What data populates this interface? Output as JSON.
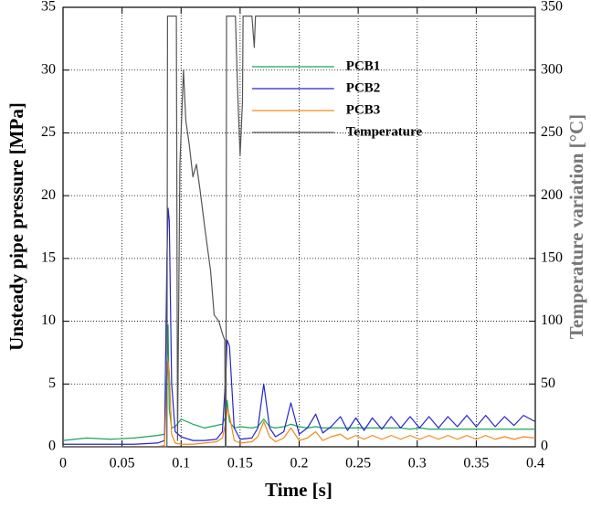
{
  "chart_data": {
    "type": "line",
    "x_label": "Time [s]",
    "y_label": "Unsteady pipe pressure [MPa]",
    "y2_label": "Temperature variation [°C]",
    "y2_label_color": "#777777",
    "xlim": [
      0,
      0.4
    ],
    "xticks": [
      0,
      0.05,
      0.1,
      0.15,
      0.2,
      0.25,
      0.3,
      0.35,
      0.4
    ],
    "ylim": [
      0,
      35
    ],
    "yticks": [
      0,
      5,
      10,
      15,
      20,
      25,
      30,
      35
    ],
    "y2lim": [
      0,
      350
    ],
    "y2ticks": [
      0,
      50,
      100,
      150,
      200,
      250,
      300,
      350
    ],
    "grid": true,
    "legend": "upper center",
    "series": [
      {
        "name": "PCB1",
        "color": "#1aa55a",
        "x": [
          0,
          0.02,
          0.04,
          0.06,
          0.08,
          0.086,
          0.088,
          0.089,
          0.09,
          0.092,
          0.095,
          0.1,
          0.11,
          0.12,
          0.13,
          0.135,
          0.138,
          0.139,
          0.141,
          0.145,
          0.15,
          0.16,
          0.165,
          0.17,
          0.175,
          0.18,
          0.187,
          0.193,
          0.2,
          0.207,
          0.214,
          0.22,
          0.227,
          0.235,
          0.241,
          0.248,
          0.255,
          0.262,
          0.27,
          0.278,
          0.286,
          0.294,
          0.302,
          0.31,
          0.318,
          0.326,
          0.334,
          0.342,
          0.35,
          0.358,
          0.366,
          0.374,
          0.382,
          0.39,
          0.4
        ],
        "values": [
          0.5,
          0.7,
          0.6,
          0.7,
          0.9,
          1.0,
          6,
          9.7,
          3,
          1.5,
          1.6,
          2.2,
          1.8,
          1.5,
          1.7,
          1.8,
          2.5,
          3.7,
          2,
          1.5,
          1.6,
          1.5,
          1.6,
          2.2,
          1.6,
          1.5,
          1.6,
          1.8,
          1.6,
          1.5,
          1.6,
          1.5,
          1.5,
          1.5,
          1.5,
          1.5,
          1.5,
          1.5,
          1.5,
          1.5,
          1.5,
          1.4,
          1.5,
          1.4,
          1.4,
          1.4,
          1.4,
          1.4,
          1.4,
          1.4,
          1.4,
          1.4,
          1.4,
          1.4,
          1.4
        ]
      },
      {
        "name": "PCB2",
        "color": "#2626cc",
        "x": [
          0,
          0.02,
          0.04,
          0.06,
          0.08,
          0.086,
          0.088,
          0.089,
          0.09,
          0.092,
          0.095,
          0.1,
          0.11,
          0.12,
          0.13,
          0.135,
          0.138,
          0.139,
          0.141,
          0.145,
          0.15,
          0.16,
          0.165,
          0.17,
          0.175,
          0.18,
          0.187,
          0.193,
          0.2,
          0.207,
          0.214,
          0.22,
          0.227,
          0.235,
          0.241,
          0.248,
          0.255,
          0.262,
          0.27,
          0.278,
          0.286,
          0.294,
          0.302,
          0.31,
          0.318,
          0.326,
          0.334,
          0.342,
          0.35,
          0.358,
          0.366,
          0.374,
          0.382,
          0.39,
          0.4
        ],
        "values": [
          0.2,
          0.2,
          0.2,
          0.2,
          0.3,
          0.5,
          15,
          19,
          18,
          5,
          1.2,
          0.8,
          0.5,
          0.5,
          0.6,
          1.2,
          6,
          8.5,
          8,
          1.5,
          0.6,
          0.7,
          1.5,
          5,
          1.5,
          0.8,
          1.2,
          3.5,
          1.0,
          1.5,
          2.6,
          1.1,
          1.6,
          2.4,
          1.3,
          2.3,
          1.3,
          2.3,
          1.4,
          2.4,
          1.5,
          2.4,
          1.5,
          2.4,
          1.5,
          2.4,
          1.6,
          2.5,
          1.6,
          2.5,
          1.6,
          2.4,
          1.7,
          2.5,
          2.0
        ]
      },
      {
        "name": "PCB3",
        "color": "#f08a1c",
        "x": [
          0,
          0.02,
          0.04,
          0.06,
          0.08,
          0.086,
          0.088,
          0.089,
          0.09,
          0.092,
          0.095,
          0.1,
          0.11,
          0.12,
          0.13,
          0.135,
          0.138,
          0.139,
          0.141,
          0.145,
          0.15,
          0.16,
          0.165,
          0.17,
          0.175,
          0.18,
          0.187,
          0.193,
          0.2,
          0.207,
          0.214,
          0.22,
          0.227,
          0.235,
          0.241,
          0.248,
          0.255,
          0.262,
          0.27,
          0.278,
          0.286,
          0.294,
          0.302,
          0.31,
          0.318,
          0.326,
          0.334,
          0.342,
          0.35,
          0.358,
          0.366,
          0.374,
          0.382,
          0.39,
          0.4
        ],
        "values": [
          0,
          0,
          0,
          0,
          0,
          0.1,
          5,
          6.8,
          6,
          1,
          0.3,
          0.2,
          0.2,
          0.3,
          0.4,
          0.7,
          2,
          3,
          2.5,
          0.5,
          0.3,
          0.4,
          0.8,
          2,
          0.8,
          0.4,
          0.7,
          1.5,
          0.5,
          0.7,
          1.2,
          0.5,
          0.8,
          1.0,
          0.6,
          0.9,
          0.6,
          0.9,
          0.6,
          0.9,
          0.6,
          0.9,
          0.6,
          0.9,
          0.6,
          0.9,
          0.6,
          0.9,
          0.6,
          0.9,
          0.6,
          0.8,
          0.6,
          0.8,
          0.7
        ]
      },
      {
        "name": "Temperature",
        "color": "#555555",
        "axis": "y2",
        "x": [
          0,
          0.088,
          0.0885,
          0.096,
          0.097,
          0.099,
          0.102,
          0.104,
          0.107,
          0.11,
          0.113,
          0.116,
          0.12,
          0.125,
          0.128,
          0.132,
          0.135,
          0.137,
          0.1375,
          0.138,
          0.1385,
          0.146,
          0.148,
          0.15,
          0.152,
          0.1525,
          0.158,
          0.16,
          0.162,
          0.163,
          0.4
        ],
        "values": [
          0,
          0,
          343,
          343,
          5,
          225,
          300,
          260,
          240,
          215,
          225,
          205,
          175,
          140,
          105,
          100,
          90,
          85,
          0,
          0,
          343,
          343,
          280,
          232,
          275,
          343,
          343,
          343,
          318,
          343,
          343
        ]
      }
    ]
  }
}
